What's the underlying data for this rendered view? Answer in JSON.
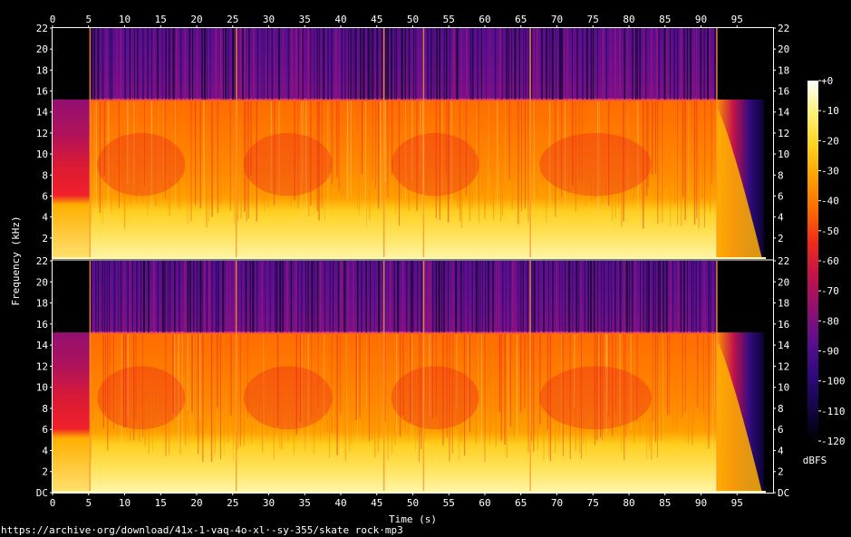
{
  "chart_data": {
    "type": "heatmap",
    "title": "",
    "xlabel": "Time (s)",
    "ylabel": "Frequency (kHz)",
    "xlim": [
      0,
      100
    ],
    "ylim": [
      0,
      22
    ],
    "x_ticks": [
      "0",
      "5",
      "10",
      "15",
      "20",
      "25",
      "30",
      "35",
      "40",
      "45",
      "50",
      "55",
      "60",
      "65",
      "70",
      "75",
      "80",
      "85",
      "90",
      "95"
    ],
    "y_ticks": [
      "DC",
      "2",
      "4",
      "6",
      "8",
      "10",
      "12",
      "14",
      "16",
      "18",
      "20",
      "22"
    ],
    "channels": [
      {
        "name": "",
        "cutoff_khz": 15.2
      },
      {
        "name": "",
        "cutoff_khz": 15.2
      }
    ],
    "colorbar": {
      "label": "dBFS",
      "range": [
        -120,
        0
      ],
      "ticks": [
        "+0",
        "-10",
        "-20",
        "-30",
        "-40",
        "-50",
        "-60",
        "-70",
        "-80",
        "-90",
        "-100",
        "-110",
        "-120"
      ],
      "colors": [
        "#ffffff",
        "#fff176",
        "#ffd21e",
        "#ffa000",
        "#ff6a00",
        "#f02a1a",
        "#c4124a",
        "#921070",
        "#5e0e8e",
        "#300a80",
        "#120644",
        "#000000"
      ]
    },
    "segments": [
      {
        "start": 0,
        "end": 5.2,
        "level": "intro",
        "content_top_khz": 15.2
      },
      {
        "start": 5.2,
        "end": 25.5,
        "level": "loud",
        "content_top_khz": 22
      },
      {
        "start": 25.5,
        "end": 46,
        "level": "loud",
        "content_top_khz": 22
      },
      {
        "start": 46,
        "end": 66.3,
        "level": "loud",
        "content_top_khz": 22
      },
      {
        "start": 66.3,
        "end": 92.2,
        "level": "loud",
        "content_top_khz": 22
      },
      {
        "start": 92.2,
        "end": 99,
        "level": "fade",
        "content_top_khz": 15.2
      }
    ],
    "transients_s": [
      5.2,
      25.5,
      46,
      51.5,
      66.3,
      92.2
    ]
  },
  "source_url": "https://archive·org/download/41x-1-vaq-4o-xl·-sy-355/skate rock·mp3"
}
